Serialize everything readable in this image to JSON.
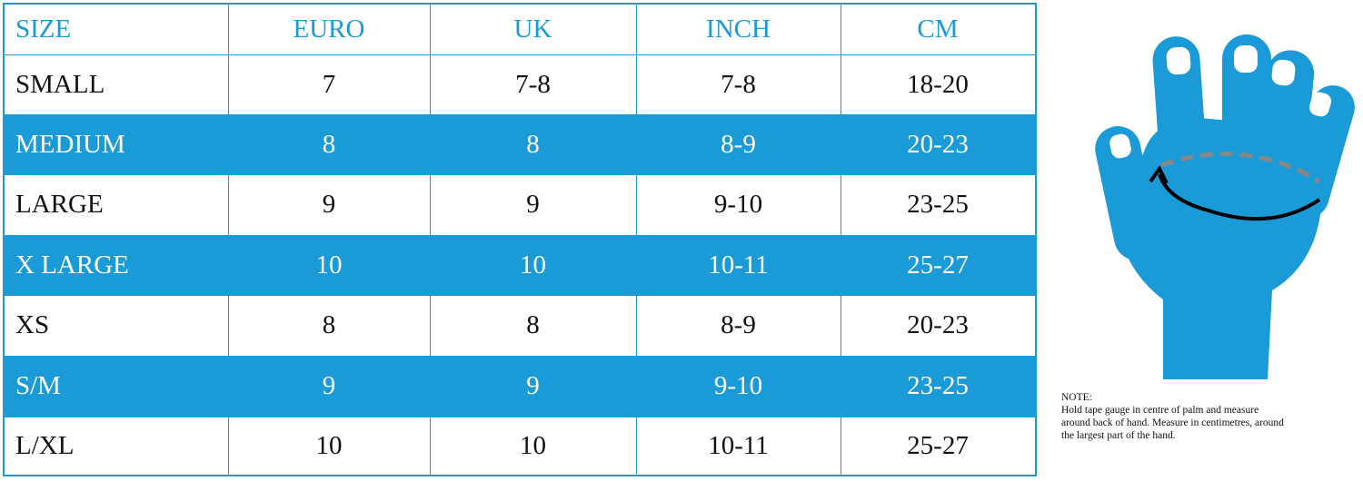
{
  "table": {
    "header": [
      "SIZE",
      "EURO",
      "UK",
      "INCH",
      "CM"
    ],
    "rows": [
      [
        "SMALL",
        "7",
        "7-8",
        "7-8",
        "18-20"
      ],
      [
        "MEDIUM",
        "8",
        "8",
        "8-9",
        "20-23"
      ],
      [
        "LARGE",
        "9",
        "9",
        "9-10",
        "23-25"
      ],
      [
        "X LARGE",
        "10",
        "10",
        "10-11",
        "25-27"
      ],
      [
        "XS",
        "8",
        "8",
        "8-9",
        "20-23"
      ],
      [
        "S/M",
        "9",
        "9",
        "9-10",
        "23-25"
      ],
      [
        "L/XL",
        "10",
        "10",
        "10-11",
        "25-27"
      ]
    ]
  },
  "note": {
    "title": "NOTE:",
    "lines": [
      "Hold tape gauge in centre of palm and measure",
      "around back of hand. Measure in centimetres, around",
      "the largest part of the hand."
    ]
  }
}
